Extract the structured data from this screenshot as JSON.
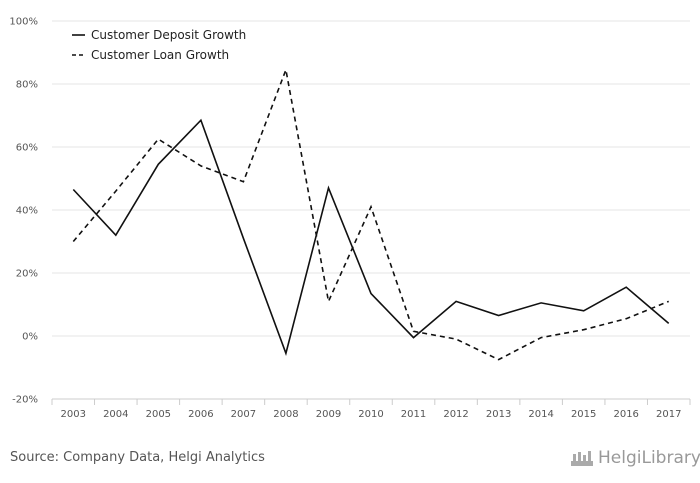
{
  "chart_data": {
    "type": "line",
    "categories": [
      "2003",
      "2004",
      "2005",
      "2006",
      "2007",
      "2008",
      "2009",
      "2010",
      "2011",
      "2012",
      "2013",
      "2014",
      "2015",
      "2016",
      "2017"
    ],
    "series": [
      {
        "name": "Customer Deposit Growth",
        "style": "solid",
        "values": [
          46.5,
          32.0,
          54.5,
          68.5,
          31.0,
          -5.5,
          47.0,
          13.5,
          -0.5,
          11.0,
          6.5,
          10.5,
          8.0,
          15.5,
          4.0
        ]
      },
      {
        "name": "Customer Loan Growth",
        "style": "dashed",
        "values": [
          30.0,
          46.0,
          62.5,
          54.0,
          49.0,
          84.5,
          11.0,
          41.0,
          1.5,
          -1.0,
          -7.5,
          -0.5,
          2.0,
          5.5,
          11.0
        ]
      }
    ],
    "y_ticks": [
      "100%",
      "80%",
      "60%",
      "40%",
      "20%",
      "0%",
      "-20%"
    ],
    "ylim": [
      -20,
      100
    ],
    "y_tick_values": [
      100,
      80,
      60,
      40,
      20,
      0,
      -20
    ],
    "grid": true,
    "legend_position": "top-left",
    "line_color": "#111111",
    "grid_color": "#e6e6e6"
  },
  "footer": {
    "source": "Source: Company Data, Helgi Analytics",
    "brand": "HelgiLibrary"
  }
}
